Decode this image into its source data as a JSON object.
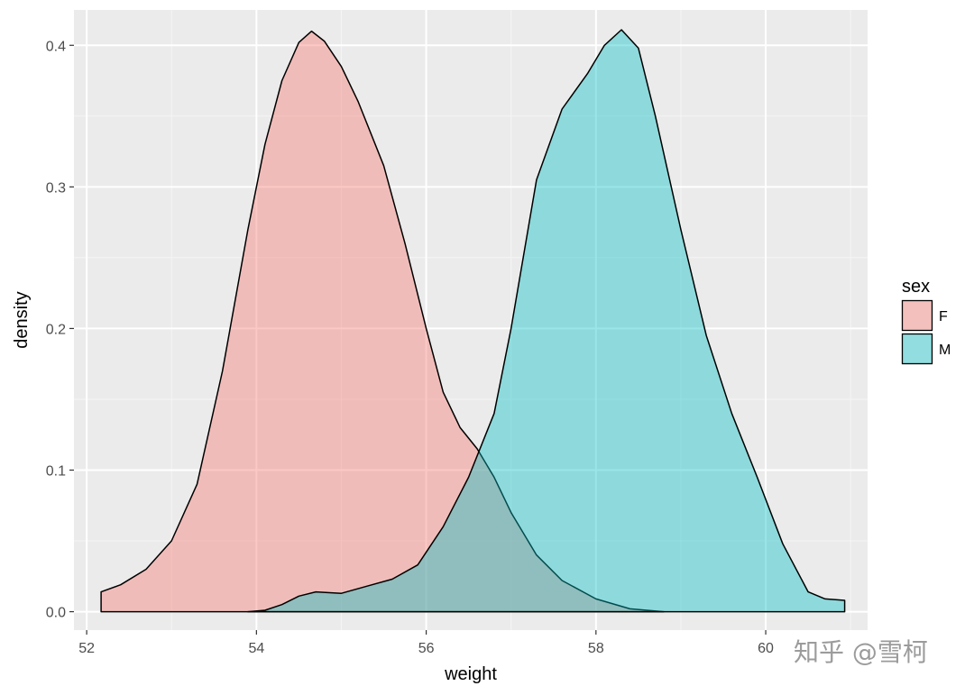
{
  "chart_data": {
    "type": "area",
    "xlabel": "weight",
    "ylabel": "density",
    "xlim": [
      51.85,
      61.2
    ],
    "ylim": [
      -0.013,
      0.425
    ],
    "xticks": [
      52,
      54,
      56,
      58,
      60
    ],
    "yticks": [
      0.0,
      0.1,
      0.2,
      0.3,
      0.4
    ],
    "xtick_labels": [
      "52",
      "54",
      "56",
      "58",
      "60"
    ],
    "ytick_labels": [
      "0.0",
      "0.1",
      "0.2",
      "0.3",
      "0.4"
    ],
    "grid": true,
    "legend": {
      "title": "sex",
      "position": "right"
    },
    "series": [
      {
        "name": "F",
        "color": "#F8766D",
        "x": [
          52.17,
          52.4,
          52.7,
          53.0,
          53.3,
          53.6,
          53.9,
          54.1,
          54.3,
          54.5,
          54.65,
          54.8,
          55.0,
          55.2,
          55.5,
          55.75,
          56.0,
          56.2,
          56.4,
          56.6,
          56.8,
          57.0,
          57.3,
          57.6,
          58.0,
          58.4,
          58.8
        ],
        "y": [
          0.014,
          0.019,
          0.03,
          0.05,
          0.09,
          0.17,
          0.27,
          0.33,
          0.375,
          0.402,
          0.41,
          0.403,
          0.385,
          0.36,
          0.315,
          0.26,
          0.2,
          0.155,
          0.13,
          0.115,
          0.095,
          0.07,
          0.04,
          0.022,
          0.009,
          0.002,
          0.0
        ]
      },
      {
        "name": "M",
        "color": "#00BFC4",
        "x": [
          53.9,
          54.1,
          54.3,
          54.5,
          54.7,
          55.0,
          55.3,
          55.6,
          55.9,
          56.2,
          56.5,
          56.8,
          57.0,
          57.3,
          57.6,
          57.9,
          58.1,
          58.3,
          58.5,
          58.7,
          59.0,
          59.3,
          59.6,
          59.9,
          60.2,
          60.5,
          60.7,
          60.93
        ],
        "y": [
          0.0,
          0.001,
          0.005,
          0.011,
          0.014,
          0.013,
          0.018,
          0.023,
          0.033,
          0.06,
          0.095,
          0.14,
          0.2,
          0.305,
          0.355,
          0.38,
          0.4,
          0.411,
          0.398,
          0.35,
          0.27,
          0.195,
          0.14,
          0.095,
          0.048,
          0.014,
          0.009,
          0.008
        ]
      }
    ]
  },
  "watermark_text": "知乎 @雪柯"
}
